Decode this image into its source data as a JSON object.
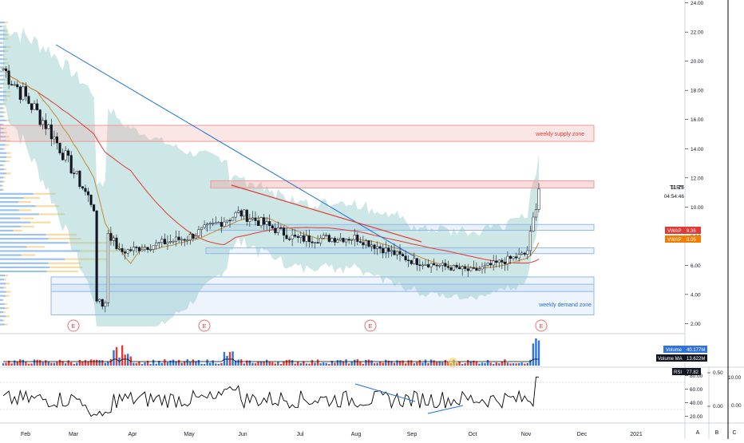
{
  "ticker": "TLRY",
  "last_price": "11.25",
  "countdown": "04:54:46",
  "colors": {
    "up": "#26a69a",
    "down": "#ef5350",
    "vwap_long": "#e53935",
    "vwap_short": "#f57c00",
    "ma": "#c28a3a",
    "bands": "#8fc9c6",
    "trendline": "#1e6fd9",
    "supply_zone": "#ef9a9a",
    "demand_zone": "#90b8e8",
    "volume_ma": "#000000",
    "rsi": "#000000"
  },
  "zones": {
    "supply_label": "weekly supply zone",
    "demand_label": "weekly demand zone"
  },
  "earnings_marker": "E",
  "labels": {
    "vwap_long": "VWAP",
    "vwap_long_value": "8.36",
    "vwap_short": "VWAP",
    "vwap_short_value": "8.05",
    "volume": "Volume",
    "volume_value": "40.177M",
    "volume_ma": "Volume MA",
    "volume_ma_value": "13.622M",
    "rsi": "RSI",
    "rsi_value": "77.82"
  },
  "price_axis": [
    "24.00",
    "22.00",
    "20.00",
    "18.00",
    "16.00",
    "14.00",
    "12.00",
    "10.00",
    "8.00",
    "6.00",
    "4.00",
    "2.00"
  ],
  "rsi_axis": [
    "80.00",
    "60.00",
    "40.00",
    "20.00"
  ],
  "extra_axis_1": [
    "0.50",
    "0.00"
  ],
  "extra_axis_2": [
    "10.00",
    "0.00"
  ],
  "time_axis": [
    "Feb",
    "Mar",
    "Apr",
    "May",
    "Jun",
    "Jul",
    "Aug",
    "Sep",
    "Oct",
    "Nov",
    "Dec",
    "2021"
  ],
  "bottom_buttons": [
    "A",
    "B",
    "C"
  ],
  "chart_data": {
    "type": "candlestick",
    "ticker": "TLRY",
    "x_axis": [
      "Feb",
      "Mar",
      "Apr",
      "May",
      "Jun",
      "Jul",
      "Aug",
      "Sep",
      "Oct",
      "Nov",
      "Dec",
      "2021"
    ],
    "y_range": [
      1,
      25
    ],
    "closes": [
      {
        "month": "Feb",
        "close": 19.5
      },
      {
        "month": "Mar",
        "close": 15.5
      },
      {
        "month": "Apr",
        "close": 6.9
      },
      {
        "month": "May",
        "close": 7.9
      },
      {
        "month": "Jun",
        "close": 9.6
      },
      {
        "month": "Jul",
        "close": 7.8
      },
      {
        "month": "Aug",
        "close": 7.9
      },
      {
        "month": "Sep",
        "close": 6.3
      },
      {
        "month": "Oct",
        "close": 5.6
      },
      {
        "month": "Nov",
        "close": 6.8
      },
      {
        "month": "Nov-end",
        "close": 11.25
      }
    ],
    "supply_zone": [
      14.5,
      15.6
    ],
    "resistance_zone": [
      11.3,
      11.8
    ],
    "demand_zone": [
      2.6,
      5.2
    ],
    "vwap": [
      8.36,
      8.05
    ],
    "volume": "40.177M",
    "volume_ma": "13.622M",
    "rsi": 77.82,
    "rsi_range": [
      10,
      90
    ]
  }
}
